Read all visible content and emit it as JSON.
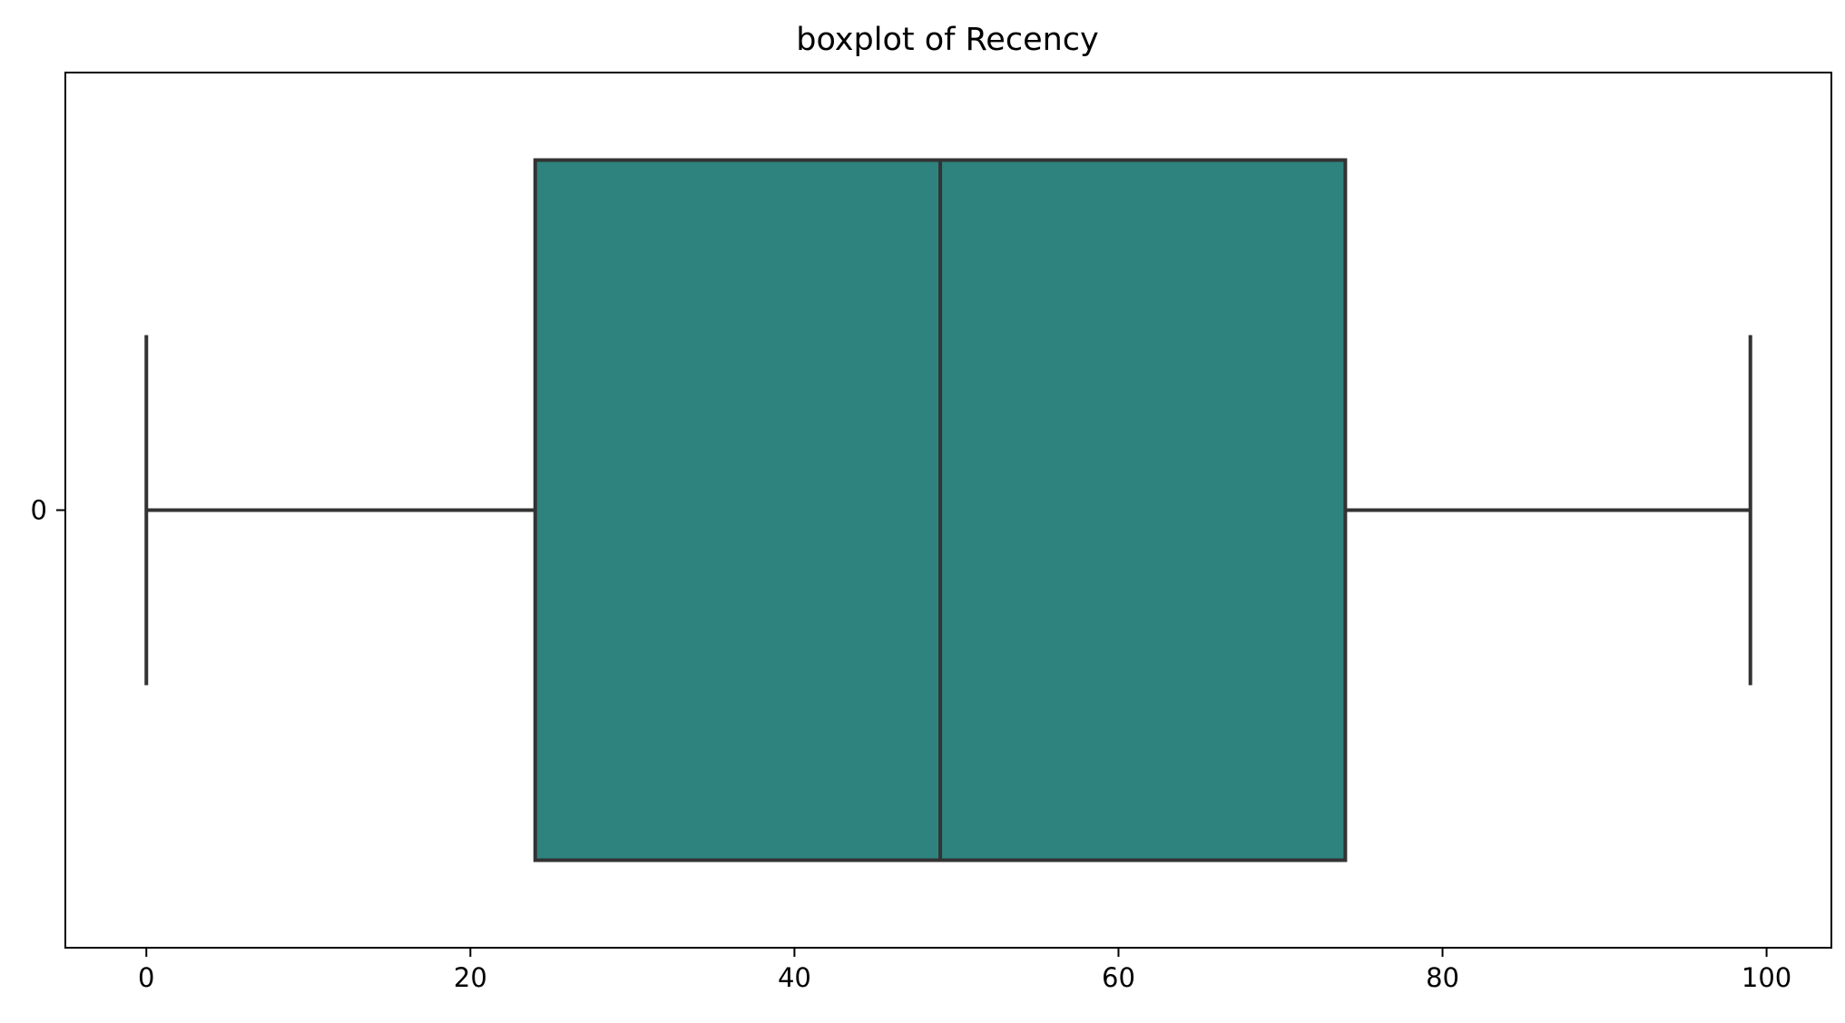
{
  "chart_data": {
    "type": "boxplot",
    "title": "boxplot of Recency",
    "orientation": "horizontal",
    "xlabel": "",
    "ylabel": "",
    "xlim": [
      -5,
      104
    ],
    "x_ticks": [
      0,
      20,
      40,
      60,
      80,
      100
    ],
    "y_tick_labels": [
      "0"
    ],
    "grid": false,
    "legend": "none",
    "boxes": [
      {
        "category": "0",
        "whisker_low": 0,
        "q1": 24,
        "median": 49,
        "q3": 74,
        "whisker_high": 99,
        "color": "#2e837e",
        "edge_color": "#333333"
      }
    ]
  }
}
